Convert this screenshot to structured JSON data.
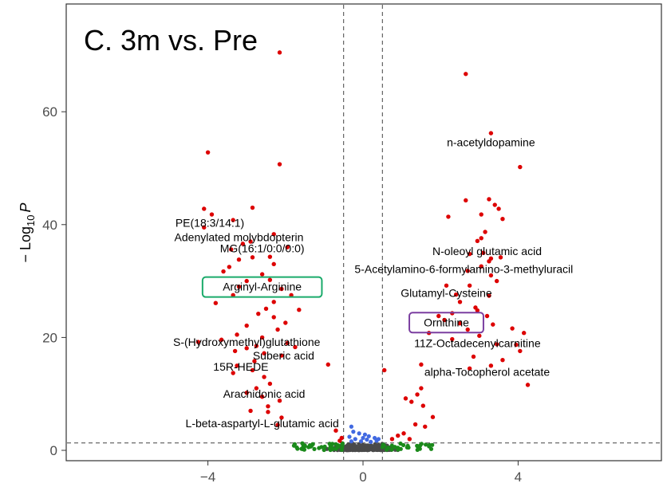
{
  "panel_title": "C. 3m vs. Pre",
  "ylabel_prefix": "− Log",
  "ylabel_sub": "10",
  "ylabel_var": "P",
  "colors": {
    "significant": "#dd0000",
    "fold_change_only": "#1b8a1b",
    "p_only": "#4169e1",
    "not_significant": "#4a4a4a",
    "highlight_green": "#1aaa6a",
    "highlight_purple": "#7b3fa0"
  },
  "chart_data": {
    "type": "scatter",
    "title": "C. 3m vs. Pre",
    "xlabel": "",
    "ylabel": "− Log10 P",
    "xlim": [
      -6.4,
      6.4
    ],
    "ylim": [
      -0.5,
      75
    ],
    "x_ticks": [
      -4,
      0,
      4
    ],
    "y_ticks": [
      0,
      20,
      40,
      60
    ],
    "threshold_lines": {
      "x": [
        -0.5,
        0.5
      ],
      "y": 1.3
    },
    "grid": false,
    "points": {
      "red": [
        [
          -2.15,
          70.5
        ],
        [
          -4.0,
          52.8
        ],
        [
          -2.15,
          50.7
        ],
        [
          -4.1,
          42.8
        ],
        [
          -2.85,
          43.0
        ],
        [
          -3.9,
          41.8
        ],
        [
          -4.1,
          39.5
        ],
        [
          -3.35,
          40.8
        ],
        [
          -2.3,
          38.3
        ],
        [
          -2.9,
          37.0
        ],
        [
          -3.1,
          36.6
        ],
        [
          -3.4,
          35.6
        ],
        [
          -1.95,
          36.0
        ],
        [
          -2.85,
          34.2
        ],
        [
          -3.2,
          33.8
        ],
        [
          -2.4,
          34.3
        ],
        [
          -2.3,
          33.0
        ],
        [
          -3.45,
          32.5
        ],
        [
          -3.6,
          31.7
        ],
        [
          -2.6,
          31.2
        ],
        [
          -3.0,
          30.0
        ],
        [
          -2.4,
          30.2
        ],
        [
          -3.2,
          29.0
        ],
        [
          -2.1,
          28.6
        ],
        [
          -3.35,
          27.5
        ],
        [
          -1.85,
          27.5
        ],
        [
          -3.8,
          26.1
        ],
        [
          -2.3,
          26.3
        ],
        [
          -2.5,
          25.1
        ],
        [
          -1.65,
          24.9
        ],
        [
          -2.7,
          24.2
        ],
        [
          -2.3,
          23.6
        ],
        [
          -2.0,
          22.6
        ],
        [
          -3.0,
          22.1
        ],
        [
          -2.2,
          21.4
        ],
        [
          -3.25,
          20.5
        ],
        [
          -2.6,
          20.0
        ],
        [
          -3.65,
          19.6
        ],
        [
          -4.25,
          19.2
        ],
        [
          -1.95,
          19.0
        ],
        [
          -2.75,
          18.5
        ],
        [
          -3.0,
          18.1
        ],
        [
          -3.3,
          17.6
        ],
        [
          -1.75,
          18.3
        ],
        [
          -2.55,
          17.2
        ],
        [
          -2.1,
          16.8
        ],
        [
          -2.8,
          15.8
        ],
        [
          -3.25,
          15.0
        ],
        [
          -2.85,
          14.2
        ],
        [
          -3.35,
          13.7
        ],
        [
          -0.9,
          15.2
        ],
        [
          -2.55,
          13.0
        ],
        [
          -2.4,
          11.8
        ],
        [
          -2.75,
          11.0
        ],
        [
          -3.0,
          10.2
        ],
        [
          -2.6,
          9.5
        ],
        [
          -2.15,
          8.8
        ],
        [
          -2.45,
          7.8
        ],
        [
          -2.9,
          7.0
        ],
        [
          -2.45,
          6.8
        ],
        [
          -2.1,
          5.8
        ],
        [
          -2.2,
          4.5
        ],
        [
          -0.7,
          3.5
        ],
        [
          -0.55,
          2.2
        ],
        [
          -0.6,
          1.7
        ],
        [
          2.65,
          66.7
        ],
        [
          3.3,
          56.2
        ],
        [
          4.05,
          50.2
        ],
        [
          2.65,
          44.3
        ],
        [
          3.25,
          44.5
        ],
        [
          3.4,
          43.5
        ],
        [
          3.5,
          42.8
        ],
        [
          3.05,
          41.8
        ],
        [
          2.2,
          41.4
        ],
        [
          3.6,
          41.0
        ],
        [
          3.15,
          38.7
        ],
        [
          3.05,
          37.6
        ],
        [
          2.95,
          37.1
        ],
        [
          3.1,
          35.0
        ],
        [
          2.75,
          34.8
        ],
        [
          3.3,
          34.0
        ],
        [
          3.25,
          33.5
        ],
        [
          3.55,
          34.2
        ],
        [
          3.05,
          32.6
        ],
        [
          2.7,
          31.8
        ],
        [
          3.3,
          31.0
        ],
        [
          3.45,
          30.0
        ],
        [
          2.15,
          29.2
        ],
        [
          2.75,
          29.2
        ],
        [
          2.4,
          27.6
        ],
        [
          3.25,
          27.4
        ],
        [
          2.5,
          26.3
        ],
        [
          2.9,
          25.3
        ],
        [
          2.3,
          24.3
        ],
        [
          2.95,
          24.8
        ],
        [
          1.95,
          23.8
        ],
        [
          2.1,
          23.1
        ],
        [
          3.2,
          23.8
        ],
        [
          3.35,
          22.3
        ],
        [
          2.5,
          22.5
        ],
        [
          3.85,
          21.6
        ],
        [
          2.7,
          21.4
        ],
        [
          4.15,
          20.8
        ],
        [
          3.0,
          20.3
        ],
        [
          1.7,
          20.8
        ],
        [
          2.3,
          19.7
        ],
        [
          3.45,
          18.8
        ],
        [
          3.95,
          18.7
        ],
        [
          4.05,
          17.6
        ],
        [
          2.85,
          16.6
        ],
        [
          3.6,
          16.0
        ],
        [
          1.5,
          15.2
        ],
        [
          3.3,
          15.0
        ],
        [
          2.75,
          14.5
        ],
        [
          0.55,
          14.2
        ],
        [
          4.25,
          11.6
        ],
        [
          1.5,
          11.0
        ],
        [
          1.4,
          9.9
        ],
        [
          1.1,
          9.2
        ],
        [
          1.25,
          8.6
        ],
        [
          1.55,
          7.9
        ],
        [
          1.8,
          5.9
        ],
        [
          1.35,
          4.6
        ],
        [
          1.6,
          4.2
        ],
        [
          1.05,
          3.0
        ],
        [
          0.9,
          2.6
        ],
        [
          0.75,
          2.0
        ],
        [
          1.2,
          2.0
        ]
      ],
      "blue": [
        [
          -0.3,
          4.2
        ],
        [
          -0.25,
          3.3
        ],
        [
          -0.1,
          3.0
        ],
        [
          0.05,
          2.8
        ],
        [
          0.15,
          2.5
        ],
        [
          -0.35,
          2.4
        ],
        [
          0.3,
          2.2
        ],
        [
          -0.2,
          2.0
        ],
        [
          0.1,
          1.9
        ],
        [
          0.35,
          1.7
        ],
        [
          -0.05,
          1.6
        ],
        [
          0.2,
          1.5
        ],
        [
          -0.3,
          1.6
        ],
        [
          0.4,
          2.0
        ],
        [
          0.0,
          2.2
        ]
      ]
    },
    "annotations": [
      {
        "label": "PE(18:3/14:1)",
        "x": -3.95,
        "y": 40.3
      },
      {
        "label": "Adenylated molybdopterin",
        "x": -3.2,
        "y": 37.8
      },
      {
        "label": "MG(16:1/0:0/0:0)",
        "x": -2.6,
        "y": 35.8
      },
      {
        "label": "Arginyl-Arginine",
        "x": -2.6,
        "y": 29.0,
        "boxed": "green"
      },
      {
        "label": "S-(Hydroxymethyl)glutathione",
        "x": -3.0,
        "y": 19.2
      },
      {
        "label": "Suberic acid",
        "x": -2.05,
        "y": 16.8
      },
      {
        "label": "15R-HEDE",
        "x": -3.15,
        "y": 14.8
      },
      {
        "label": "Arachidonic acid",
        "x": -2.55,
        "y": 10.0
      },
      {
        "label": "L-beta-aspartyl-L-glutamic acid",
        "x": -2.6,
        "y": 4.8
      },
      {
        "label": "n-acetyldopamine",
        "x": 3.3,
        "y": 54.6
      },
      {
        "label": "N-oleoyl glutamic acid",
        "x": 3.2,
        "y": 35.3
      },
      {
        "label": "5-Acetylamino-6-formylamino-3-methyluracil",
        "x": 2.6,
        "y": 32.1
      },
      {
        "label": "Glutamyl-Cysteine",
        "x": 2.15,
        "y": 27.9
      },
      {
        "label": "Ornithine",
        "x": 2.15,
        "y": 22.7,
        "boxed": "purple"
      },
      {
        "label": "11Z-Octadecenylcarnitine",
        "x": 2.95,
        "y": 19.0
      },
      {
        "label": "alpha-Tocopherol acetate",
        "x": 3.2,
        "y": 13.9
      }
    ]
  }
}
